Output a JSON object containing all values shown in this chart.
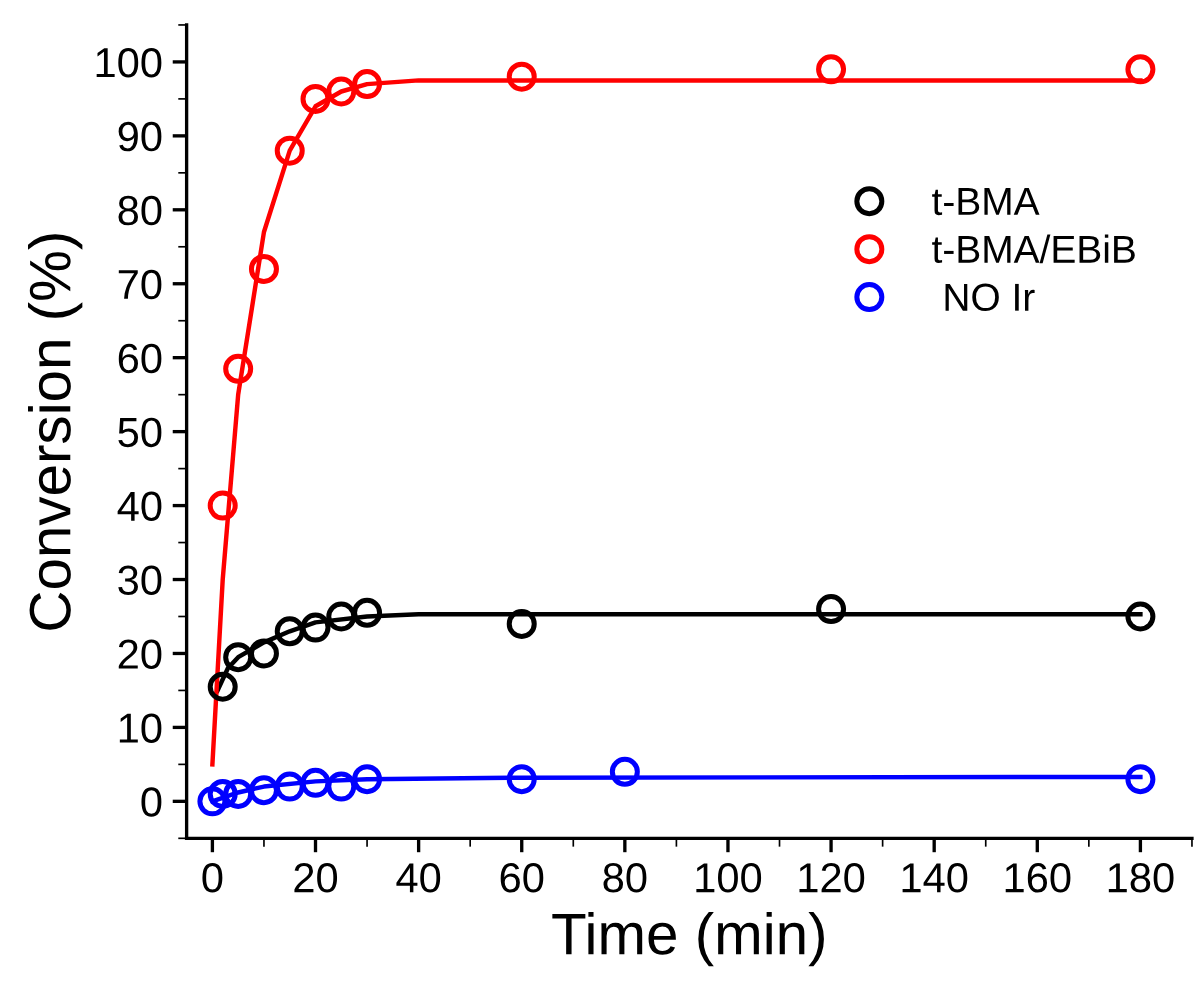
{
  "chart_data": {
    "type": "scatter",
    "xlabel": "Time (min)",
    "ylabel": "Conversion (%)",
    "xlim": [
      -5,
      190
    ],
    "ylim": [
      -5,
      105
    ],
    "xticks": [
      0,
      20,
      40,
      60,
      80,
      100,
      120,
      140,
      160,
      180
    ],
    "yticks": [
      0,
      10,
      20,
      30,
      40,
      50,
      60,
      70,
      80,
      90,
      100
    ],
    "grid": false,
    "legend": "right",
    "marker": "circle",
    "series": [
      {
        "name": "t-BMA",
        "color": "#000000",
        "x": [
          2,
          5,
          10,
          15,
          20,
          25,
          30,
          60,
          120,
          180
        ],
        "values": [
          15.5,
          19.5,
          20,
          23,
          23.5,
          25,
          25.5,
          24,
          26,
          25
        ]
      },
      {
        "name": "t-BMA/EBiB",
        "color": "#ff0000",
        "x": [
          2,
          5,
          10,
          15,
          20,
          25,
          30,
          60,
          120,
          180
        ],
        "values": [
          40,
          58.5,
          72,
          88,
          95,
          96,
          97,
          98,
          99,
          99
        ]
      },
      {
        "name": " NO Ir",
        "color": "#0000ff",
        "x": [
          0,
          2,
          5,
          10,
          15,
          20,
          25,
          30,
          60,
          80,
          180
        ],
        "values": [
          0,
          1,
          1,
          1.5,
          2,
          2.5,
          2,
          3,
          3,
          4,
          3
        ]
      },
      {
        "type": "line",
        "color": "#000000",
        "marker": "none",
        "x": [
          1,
          3,
          5,
          10,
          15,
          20,
          30,
          40,
          180
        ],
        "values": [
          15,
          18,
          19.5,
          21.5,
          23,
          24.2,
          25,
          25.3,
          25.3
        ]
      },
      {
        "type": "line",
        "color": "#ff0000",
        "marker": "none",
        "x": [
          0,
          2,
          5,
          10,
          15,
          20,
          25,
          30,
          40,
          180
        ],
        "values": [
          5,
          30,
          55,
          77,
          88,
          94,
          96,
          97,
          97.5,
          97.5
        ]
      },
      {
        "type": "line",
        "color": "#0000ff",
        "marker": "none",
        "x": [
          0,
          5,
          10,
          20,
          30,
          60,
          180
        ],
        "values": [
          0,
          1.2,
          2,
          2.7,
          3,
          3.2,
          3.3
        ]
      }
    ]
  }
}
